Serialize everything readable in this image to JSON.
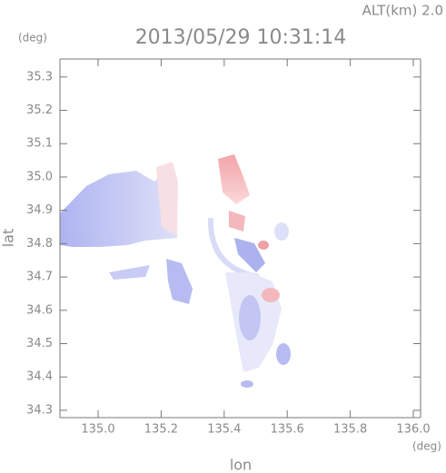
{
  "header": {
    "altitude": "ALT(km) 2.0",
    "title": "2013/05/29 10:31:14"
  },
  "axes": {
    "x": {
      "label": "lon",
      "unit": "(deg)",
      "lim": [
        134.879,
        136.023
      ],
      "ticks": [
        {
          "value": 135,
          "label": "135.0"
        },
        135.2,
        135.4,
        135.6,
        135.8,
        {
          "value": 136,
          "label": "136.0"
        }
      ]
    },
    "y": {
      "label": "lat",
      "unit": "(deg)",
      "lim": [
        34.278,
        35.354
      ],
      "ticks": [
        34.3,
        34.4,
        34.5,
        34.6,
        34.7,
        34.8,
        34.9,
        {
          "value": 35,
          "label": "35.0"
        },
        35.1,
        35.2,
        35.3
      ]
    }
  }
}
